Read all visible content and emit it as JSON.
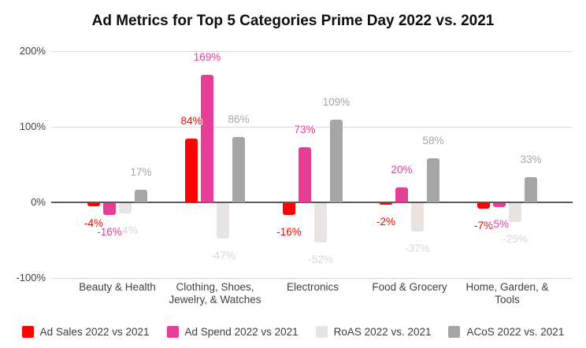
{
  "chart_data": {
    "type": "bar",
    "title": "Ad Metrics for Top 5 Categories Prime Day 2022 vs. 2021",
    "categories": [
      "Beauty & Health",
      "Clothing, Shoes, Jewelry, & Watches",
      "Electronics",
      "Food & Grocery",
      "Home, Garden, & Tools"
    ],
    "series": [
      {
        "name": "Ad Sales 2022 vs 2021",
        "color": "#fa0404",
        "label_color": "#fa0404",
        "values": [
          -4,
          84,
          -16,
          -2,
          -7
        ]
      },
      {
        "name": "Ad Spend 2022 vs 2021",
        "color": "#e63e97",
        "label_color": "#e63e97",
        "values": [
          -16,
          169,
          73,
          20,
          -5
        ]
      },
      {
        "name": "RoAS 2022 vs. 2021",
        "color": "#e9e4e1",
        "label_color": "#ddd5d1",
        "values": [
          -14,
          -47,
          -52,
          -37,
          -25
        ]
      },
      {
        "name": "ACoS 2022 vs. 2021",
        "color": "#a6a6a6",
        "label_color": "#a6a6a6",
        "values": [
          17,
          86,
          109,
          58,
          33
        ]
      }
    ],
    "value_suffix": "%",
    "y_axis": {
      "ticks": [
        "200%",
        "100%",
        "0%",
        "-100%"
      ],
      "tick_values": [
        200,
        100,
        0,
        -100
      ],
      "ylim": [
        -100,
        200
      ]
    },
    "grid": true,
    "legend_position": "bottom",
    "colors": {
      "gridline": "#d9d9d9",
      "zero_axis": "#595959",
      "axis_text": "#404040",
      "legend_text": "#3d3d3d",
      "title_text": "#0d0d0d"
    }
  }
}
